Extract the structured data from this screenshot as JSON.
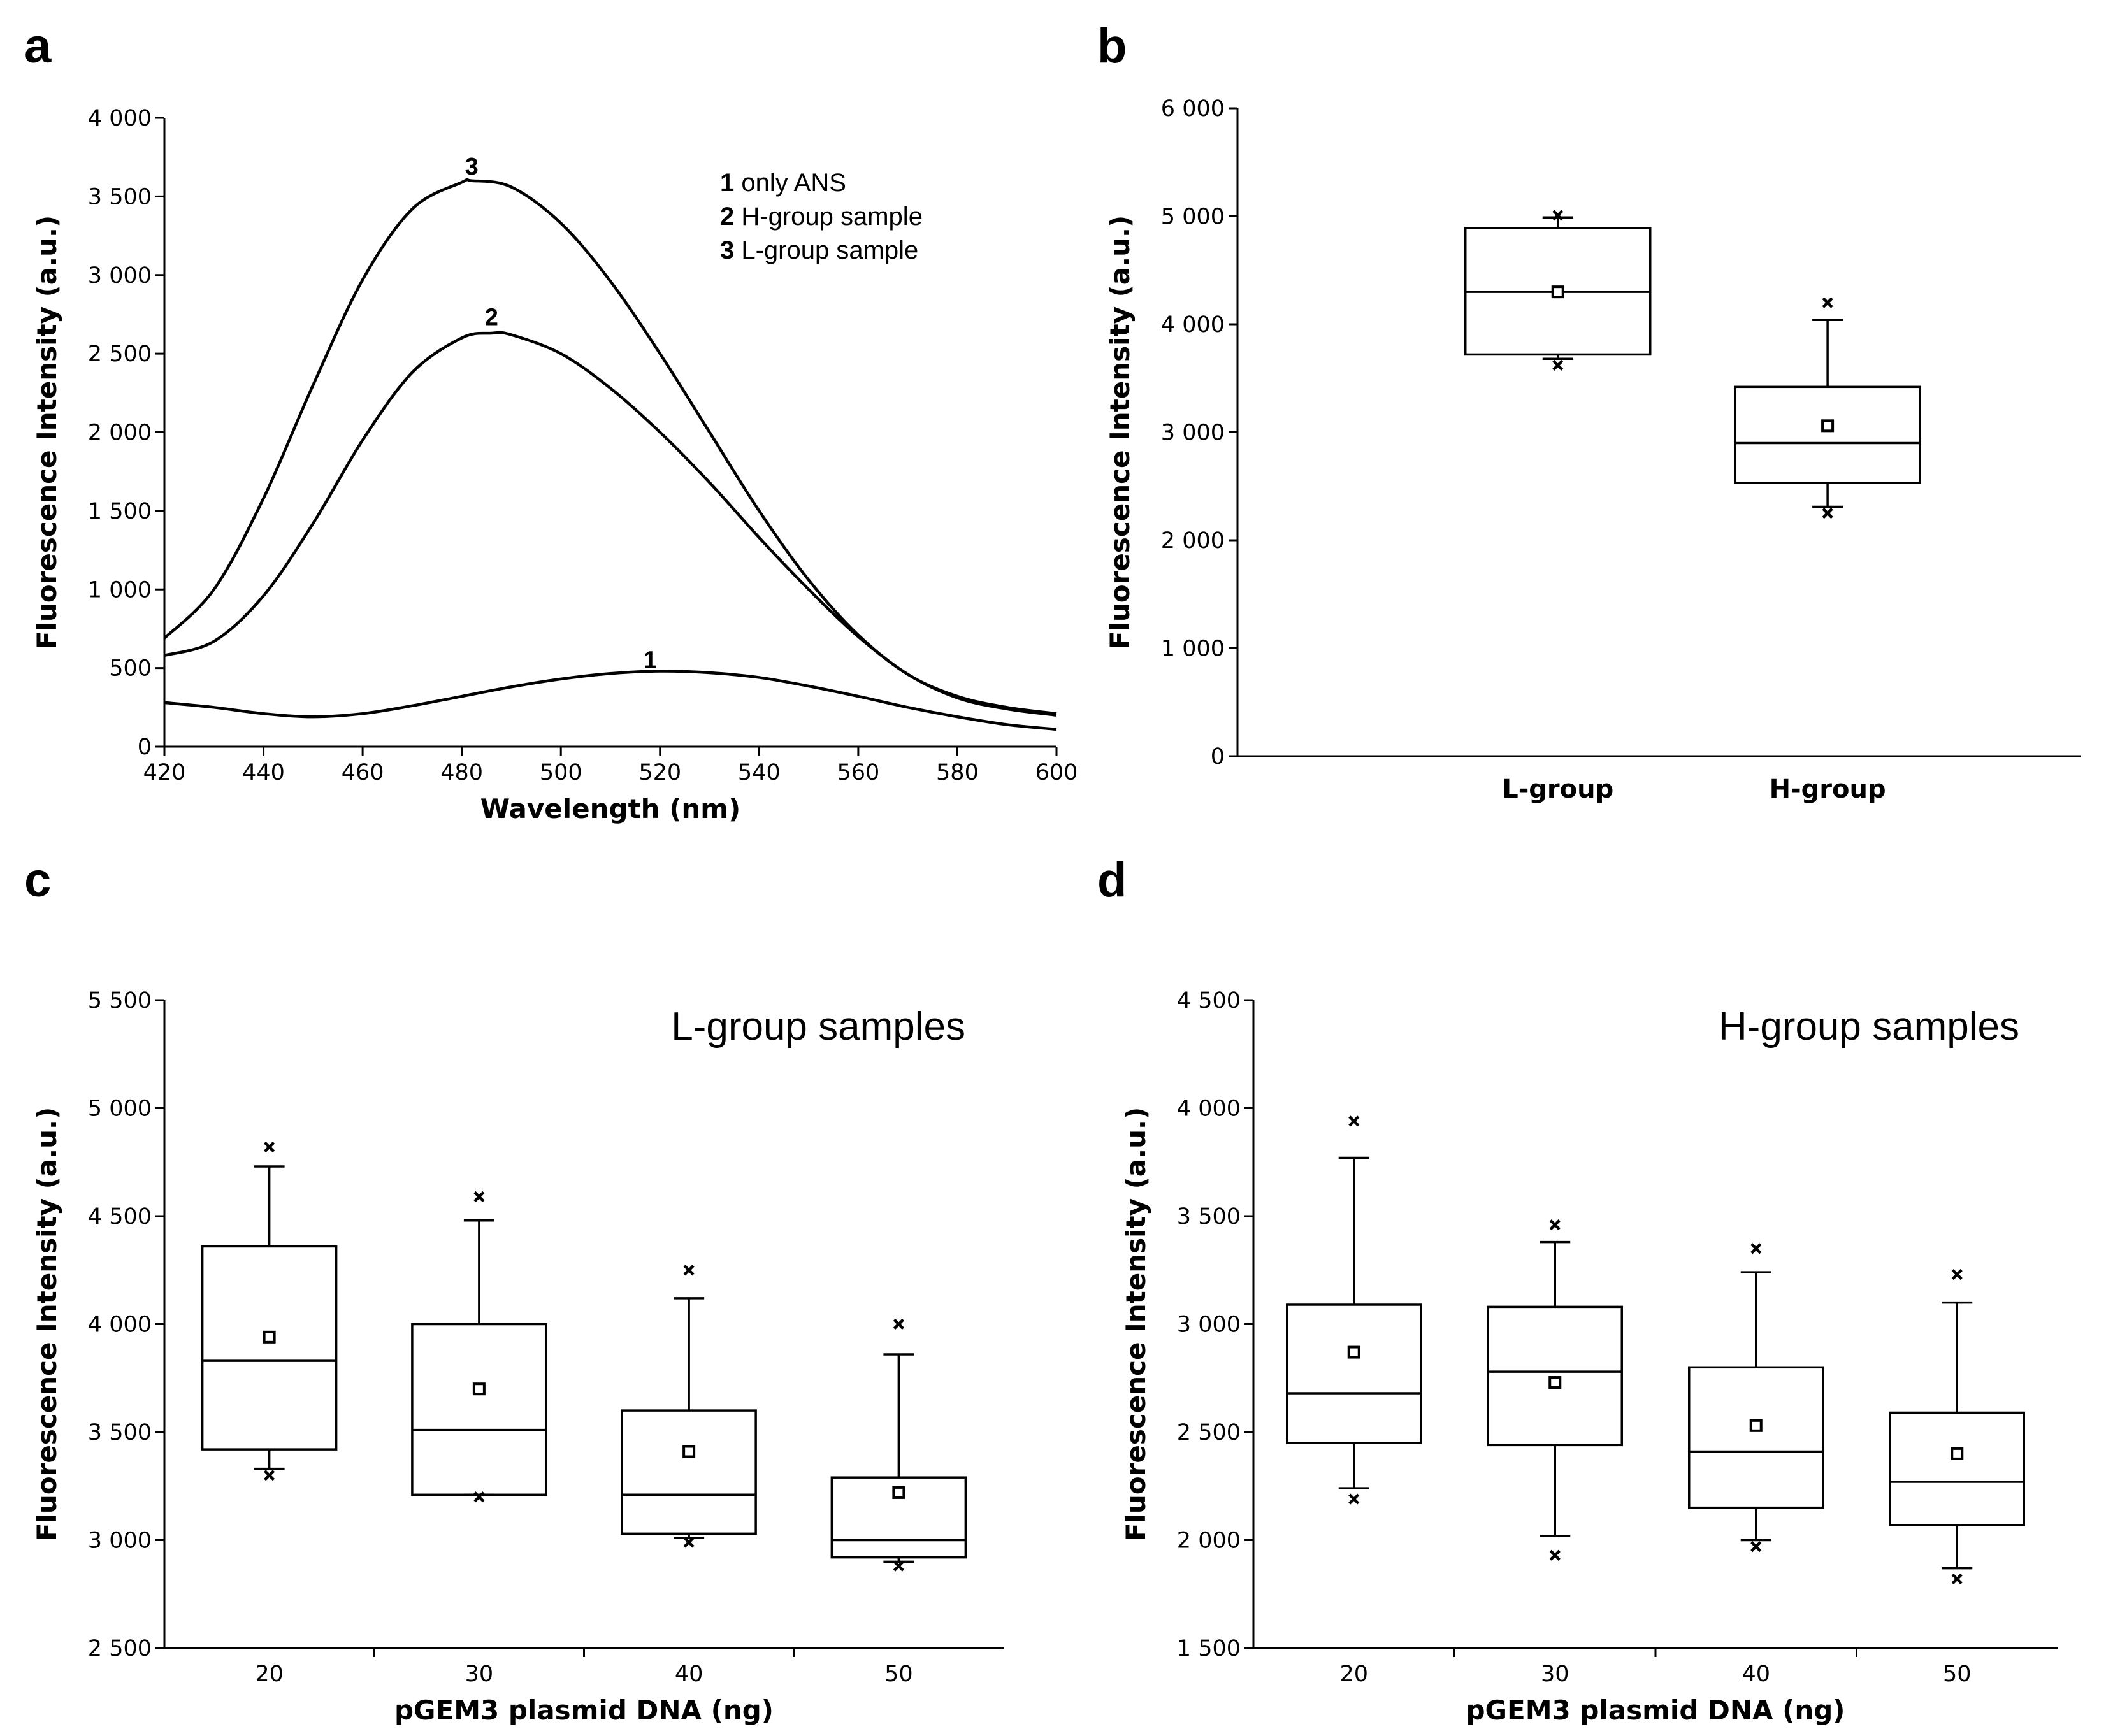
{
  "panels": {
    "a": {
      "letter": "a"
    },
    "b": {
      "letter": "b"
    },
    "c": {
      "letter": "c"
    },
    "d": {
      "letter": "d"
    }
  },
  "chart_data": [
    {
      "id": "a",
      "type": "line",
      "xlabel": "Wavelength (nm)",
      "ylabel": "Fluorescence Intensity (a.u.)",
      "xlim": [
        420,
        600
      ],
      "ylim": [
        0,
        4000
      ],
      "xticks": [
        420,
        440,
        460,
        480,
        500,
        520,
        540,
        560,
        580,
        600
      ],
      "xtick_labels": [
        "420",
        "440",
        "460",
        "480",
        "500",
        "520",
        "540",
        "560",
        "580",
        "600"
      ],
      "yticks": [
        0,
        500,
        1000,
        1500,
        2000,
        2500,
        3000,
        3500,
        4000
      ],
      "ytick_labels": [
        "0",
        "500",
        "1 000",
        "1 500",
        "2 000",
        "2 500",
        "3 000",
        "3 500",
        "4 000"
      ],
      "legend": {
        "position": "top-right",
        "entries": [
          {
            "num": "1",
            "text": " only ANS"
          },
          {
            "num": "2",
            "text": " H-group sample"
          },
          {
            "num": "3",
            "text": " L-group sample"
          }
        ]
      },
      "series": [
        {
          "name": "1",
          "label": "1",
          "label_at": [
            518,
            500
          ],
          "x": [
            420,
            430,
            440,
            450,
            460,
            470,
            480,
            490,
            500,
            510,
            520,
            530,
            540,
            550,
            560,
            570,
            580,
            590,
            600
          ],
          "y": [
            280,
            250,
            210,
            190,
            210,
            260,
            320,
            380,
            430,
            465,
            480,
            470,
            440,
            385,
            320,
            250,
            190,
            140,
            110
          ]
        },
        {
          "name": "2",
          "label": "2",
          "label_at": [
            486,
            2680
          ],
          "x": [
            420,
            430,
            440,
            450,
            460,
            470,
            480,
            486,
            490,
            500,
            510,
            520,
            530,
            540,
            550,
            560,
            570,
            580,
            590,
            600
          ],
          "y": [
            580,
            670,
            960,
            1420,
            1950,
            2380,
            2600,
            2630,
            2620,
            2500,
            2280,
            2000,
            1680,
            1330,
            1000,
            700,
            460,
            310,
            240,
            200
          ]
        },
        {
          "name": "3",
          "label": "3",
          "label_at": [
            482,
            3640
          ],
          "x": [
            420,
            430,
            440,
            450,
            460,
            470,
            480,
            482,
            490,
            500,
            510,
            520,
            530,
            540,
            550,
            560,
            570,
            580,
            590,
            600
          ],
          "y": [
            690,
            1000,
            1580,
            2300,
            2970,
            3420,
            3590,
            3600,
            3560,
            3330,
            2960,
            2500,
            2000,
            1500,
            1060,
            710,
            460,
            320,
            250,
            210
          ]
        }
      ]
    },
    {
      "id": "b",
      "type": "box",
      "xlabel": "",
      "ylabel": "Fluorescence Intensity (a.u.)",
      "ylim": [
        0,
        6000
      ],
      "yticks": [
        0,
        1000,
        2000,
        3000,
        4000,
        5000,
        6000
      ],
      "ytick_labels": [
        "0",
        "1 000",
        "2 000",
        "3 000",
        "4 000",
        "5 000",
        "6 000"
      ],
      "categories": [
        "L-group",
        "H-group"
      ],
      "category_positions": [
        0.38,
        0.7
      ],
      "bold_categories": true,
      "boxes": [
        {
          "q1": 3720,
          "median": 4300,
          "q3": 4890,
          "whisker_low": 3680,
          "whisker_high": 4990,
          "mean": 4300,
          "outliers": [
            5010,
            3620
          ]
        },
        {
          "q1": 2530,
          "median": 2900,
          "q3": 3420,
          "whisker_low": 2310,
          "whisker_high": 4040,
          "mean": 3060,
          "outliers": [
            4200,
            2250
          ]
        }
      ]
    },
    {
      "id": "c",
      "type": "box",
      "title": "L-group samples",
      "xlabel": "pGEM3 plasmid DNA (ng)",
      "ylabel": "Fluorescence Intensity (a.u.)",
      "ylim": [
        2500,
        5500
      ],
      "yticks": [
        2500,
        3000,
        3500,
        4000,
        4500,
        5000,
        5500
      ],
      "ytick_labels": [
        "2 500",
        "3 000",
        "3 500",
        "4 000",
        "4 500",
        "5 000",
        "5 500"
      ],
      "categories": [
        "20",
        "30",
        "40",
        "50"
      ],
      "category_positions": [
        0.125,
        0.375,
        0.625,
        0.875
      ],
      "bold_categories": false,
      "boxes": [
        {
          "q1": 3420,
          "median": 3830,
          "q3": 4360,
          "whisker_low": 3330,
          "whisker_high": 4730,
          "mean": 3940,
          "outliers": [
            4820,
            3300
          ]
        },
        {
          "q1": 3210,
          "median": 3510,
          "q3": 4000,
          "whisker_low": 3210,
          "whisker_high": 4480,
          "mean": 3700,
          "outliers": [
            4590,
            3200
          ]
        },
        {
          "q1": 3030,
          "median": 3210,
          "q3": 3600,
          "whisker_low": 3010,
          "whisker_high": 4120,
          "mean": 3410,
          "outliers": [
            4250,
            2990
          ]
        },
        {
          "q1": 2920,
          "median": 3000,
          "q3": 3290,
          "whisker_low": 2900,
          "whisker_high": 3860,
          "mean": 3220,
          "outliers": [
            4000,
            2880
          ]
        }
      ]
    },
    {
      "id": "d",
      "type": "box",
      "title": "H-group samples",
      "xlabel": "pGEM3 plasmid DNA (ng)",
      "ylabel": "Fluorescence Intensity (a.u.)",
      "ylim": [
        1500,
        4500
      ],
      "yticks": [
        1500,
        2000,
        2500,
        3000,
        3500,
        4000,
        4500
      ],
      "ytick_labels": [
        "1 500",
        "2 000",
        "2 500",
        "3 000",
        "3 500",
        "4 000",
        "4 500"
      ],
      "categories": [
        "20",
        "30",
        "40",
        "50"
      ],
      "category_positions": [
        0.125,
        0.375,
        0.625,
        0.875
      ],
      "bold_categories": false,
      "boxes": [
        {
          "q1": 2450,
          "median": 2680,
          "q3": 3090,
          "whisker_low": 2240,
          "whisker_high": 3770,
          "mean": 2870,
          "outliers": [
            3940,
            2190
          ]
        },
        {
          "q1": 2440,
          "median": 2780,
          "q3": 3080,
          "whisker_low": 2020,
          "whisker_high": 3380,
          "mean": 2730,
          "outliers": [
            3460,
            1930
          ]
        },
        {
          "q1": 2150,
          "median": 2410,
          "q3": 2800,
          "whisker_low": 2000,
          "whisker_high": 3240,
          "mean": 2530,
          "outliers": [
            3350,
            1970
          ]
        },
        {
          "q1": 2070,
          "median": 2270,
          "q3": 2590,
          "whisker_low": 1870,
          "whisker_high": 3100,
          "mean": 2400,
          "outliers": [
            3230,
            1820
          ]
        }
      ]
    }
  ]
}
